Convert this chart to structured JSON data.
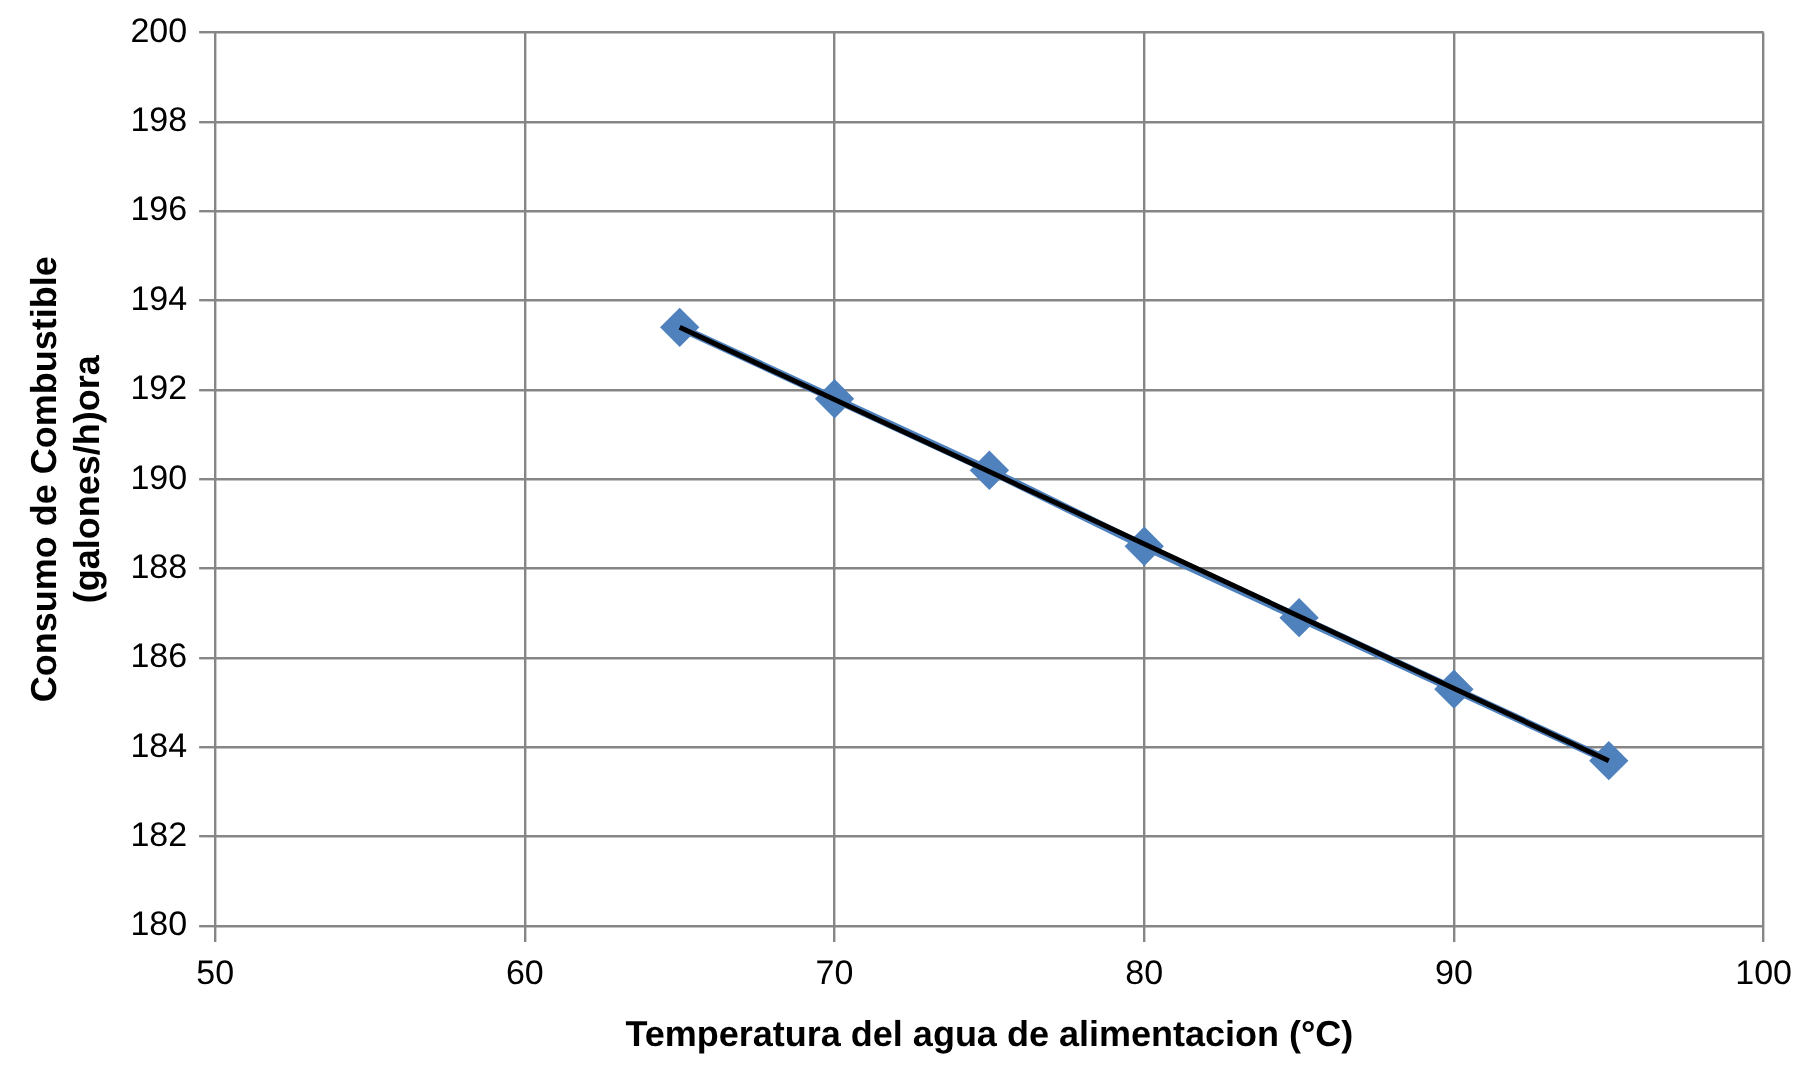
{
  "chart_data": {
    "type": "line",
    "xlabel": "Temperatura del agua de alimentacion (°C)",
    "ylabel": "Consumo de Combustible\n(galones/h)ora",
    "x": [
      65,
      70,
      75,
      80,
      85,
      90,
      95
    ],
    "series": [
      {
        "color": "#4f81bd",
        "marker": "diamond",
        "values": [
          193.4,
          191.8,
          190.2,
          188.5,
          186.9,
          185.3,
          183.7
        ]
      },
      {
        "color": "#000000",
        "marker": "none",
        "x": [
          65,
          95
        ],
        "values": [
          193.4,
          183.7
        ]
      }
    ],
    "xlim": [
      50,
      100
    ],
    "xticks": [
      50,
      60,
      70,
      80,
      90,
      100
    ],
    "ylim": [
      180,
      200
    ],
    "yticks": [
      180,
      182,
      184,
      186,
      188,
      190,
      192,
      194,
      196,
      198,
      200
    ],
    "grid": true,
    "legend": false
  }
}
